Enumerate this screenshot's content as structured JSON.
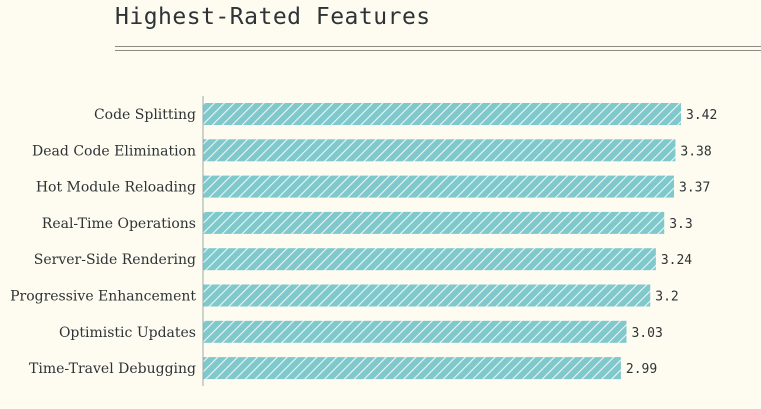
{
  "chart_data": {
    "type": "bar",
    "orientation": "horizontal",
    "title": "Highest-Rated Features",
    "categories": [
      "Code Splitting",
      "Dead Code Elimination",
      "Hot Module Reloading",
      "Real-Time Operations",
      "Server-Side Rendering",
      "Progressive Enhancement",
      "Optimistic Updates",
      "Time-Travel Debugging"
    ],
    "values": [
      3.42,
      3.38,
      3.37,
      3.3,
      3.24,
      3.2,
      3.03,
      2.99
    ],
    "value_labels": [
      "3.42",
      "3.38",
      "3.37",
      "3.3",
      "3.24",
      "3.2",
      "3.03",
      "2.99"
    ],
    "xlim": [
      0,
      3.42
    ],
    "grid": false,
    "colors": {
      "bar": "#7fc8cc",
      "bar_hatch": "#eaf6f6",
      "axis": "#9aa8a8",
      "text": "#2e3336",
      "background": "#fefcf0"
    }
  }
}
